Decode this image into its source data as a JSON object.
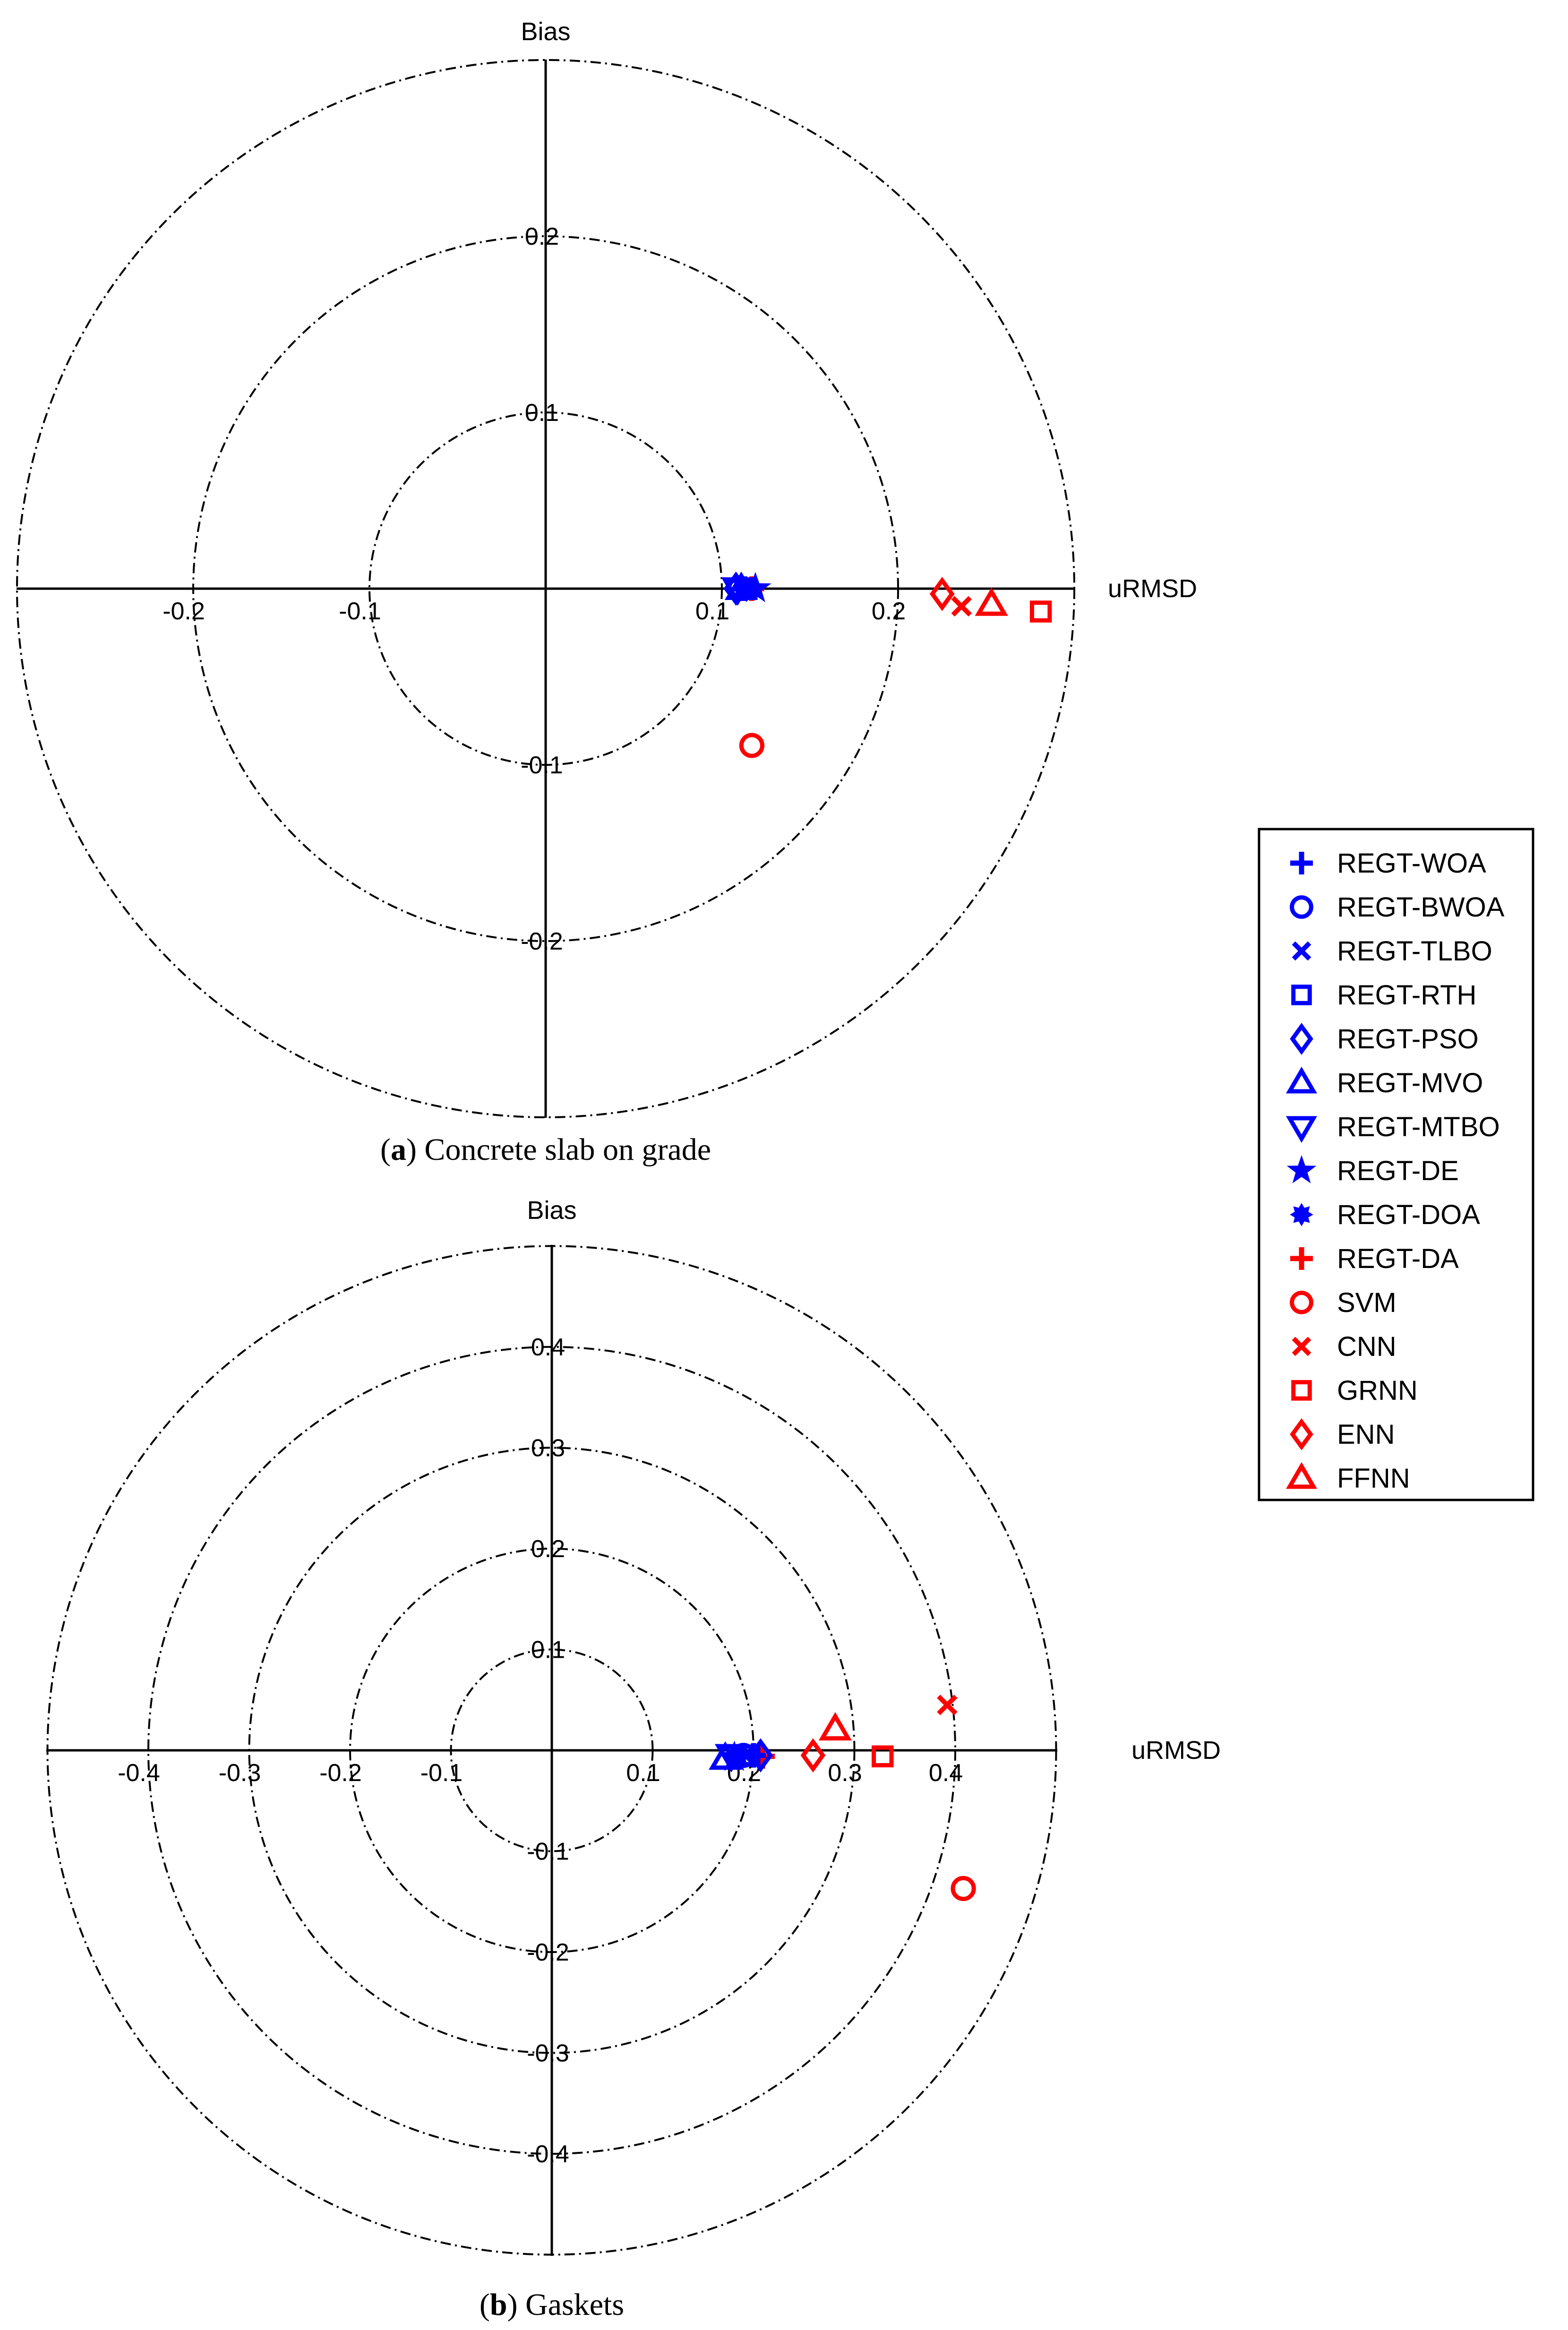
{
  "chart_data": [
    {
      "type": "scatter",
      "caption_letter": "a",
      "caption_text": ") Concrete slab on grade",
      "xlabel": "uRMSD",
      "ylabel": "Bias",
      "rings": [
        0.1,
        0.2,
        0.3
      ],
      "x_ticks": [
        "-0.2",
        "-0.1",
        "0.1",
        "0.2"
      ],
      "y_ticks": [
        "0.2",
        "0.1",
        "-0.1",
        "-0.2"
      ],
      "grid": true,
      "points": [
        {
          "series": "REGT-WOA",
          "x": 0.113,
          "y": 0.0
        },
        {
          "series": "REGT-BWOA",
          "x": 0.11,
          "y": 0.0
        },
        {
          "series": "REGT-TLBO",
          "x": 0.112,
          "y": 0.0
        },
        {
          "series": "REGT-RTH",
          "x": 0.114,
          "y": 0.0
        },
        {
          "series": "REGT-PSO",
          "x": 0.108,
          "y": 0.0
        },
        {
          "series": "REGT-MVO",
          "x": 0.111,
          "y": 0.0
        },
        {
          "series": "REGT-MTBO",
          "x": 0.109,
          "y": 0.0
        },
        {
          "series": "REGT-DE",
          "x": 0.119,
          "y": 0.0
        },
        {
          "series": "REGT-DOA",
          "x": 0.112,
          "y": 0.0
        },
        {
          "series": "REGT-DA",
          "x": 0.117,
          "y": 0.0
        },
        {
          "series": "SVM",
          "x": 0.117,
          "y": -0.089
        },
        {
          "series": "CNN",
          "x": 0.236,
          "y": -0.01
        },
        {
          "series": "GRNN",
          "x": 0.281,
          "y": -0.013
        },
        {
          "series": "ENN",
          "x": 0.225,
          "y": -0.003
        },
        {
          "series": "FFNN",
          "x": 0.253,
          "y": -0.009
        }
      ]
    },
    {
      "type": "scatter",
      "caption_letter": "b",
      "caption_text": ") Gaskets",
      "xlabel": "uRMSD",
      "ylabel": "Bias",
      "rings": [
        0.1,
        0.2,
        0.3,
        0.4,
        0.5
      ],
      "x_ticks": [
        "-0.4",
        "-0.3",
        "-0.2",
        "-0.1",
        "0.1",
        "0.2",
        "0.3",
        "0.4"
      ],
      "y_ticks": [
        "0.4",
        "0.3",
        "0.2",
        "0.1",
        "-0.1",
        "-0.2",
        "-0.3",
        "-0.4"
      ],
      "grid": true,
      "points": [
        {
          "series": "REGT-WOA",
          "x": 0.2,
          "y": -0.005
        },
        {
          "series": "REGT-BWOA",
          "x": 0.19,
          "y": -0.005
        },
        {
          "series": "REGT-TLBO",
          "x": 0.192,
          "y": -0.005
        },
        {
          "series": "REGT-RTH",
          "x": 0.196,
          "y": -0.005
        },
        {
          "series": "REGT-PSO",
          "x": 0.207,
          "y": -0.005
        },
        {
          "series": "REGT-MVO",
          "x": 0.172,
          "y": -0.008
        },
        {
          "series": "REGT-MTBO",
          "x": 0.178,
          "y": -0.005
        },
        {
          "series": "REGT-DE",
          "x": 0.181,
          "y": -0.007
        },
        {
          "series": "REGT-DOA",
          "x": 0.185,
          "y": -0.006
        },
        {
          "series": "REGT-DA",
          "x": 0.209,
          "y": -0.006
        },
        {
          "series": "SVM",
          "x": 0.408,
          "y": -0.137
        },
        {
          "series": "CNN",
          "x": 0.392,
          "y": 0.045
        },
        {
          "series": "GRNN",
          "x": 0.328,
          "y": -0.006
        },
        {
          "series": "ENN",
          "x": 0.259,
          "y": -0.005
        },
        {
          "series": "FFNN",
          "x": 0.281,
          "y": 0.021
        }
      ]
    }
  ],
  "legend": [
    {
      "name": "REGT-WOA",
      "marker": "plus",
      "color": "#0000ff"
    },
    {
      "name": "REGT-BWOA",
      "marker": "circle",
      "color": "#0000ff"
    },
    {
      "name": "REGT-TLBO",
      "marker": "x",
      "color": "#0000ff"
    },
    {
      "name": "REGT-RTH",
      "marker": "square",
      "color": "#0000ff"
    },
    {
      "name": "REGT-PSO",
      "marker": "diamond",
      "color": "#0000ff"
    },
    {
      "name": "REGT-MVO",
      "marker": "triangle",
      "color": "#0000ff"
    },
    {
      "name": "REGT-MTBO",
      "marker": "tri-down",
      "color": "#0000ff"
    },
    {
      "name": "REGT-DE",
      "marker": "star",
      "color": "#0000ff"
    },
    {
      "name": "REGT-DOA",
      "marker": "burst",
      "color": "#0000ff"
    },
    {
      "name": "REGT-DA",
      "marker": "plus",
      "color": "#ff0000"
    },
    {
      "name": "SVM",
      "marker": "circle",
      "color": "#ff0000"
    },
    {
      "name": "CNN",
      "marker": "x",
      "color": "#ff0000"
    },
    {
      "name": "GRNN",
      "marker": "square",
      "color": "#ff0000"
    },
    {
      "name": "ENN",
      "marker": "diamond",
      "color": "#ff0000"
    },
    {
      "name": "FFNN",
      "marker": "triangle",
      "color": "#ff0000"
    }
  ]
}
